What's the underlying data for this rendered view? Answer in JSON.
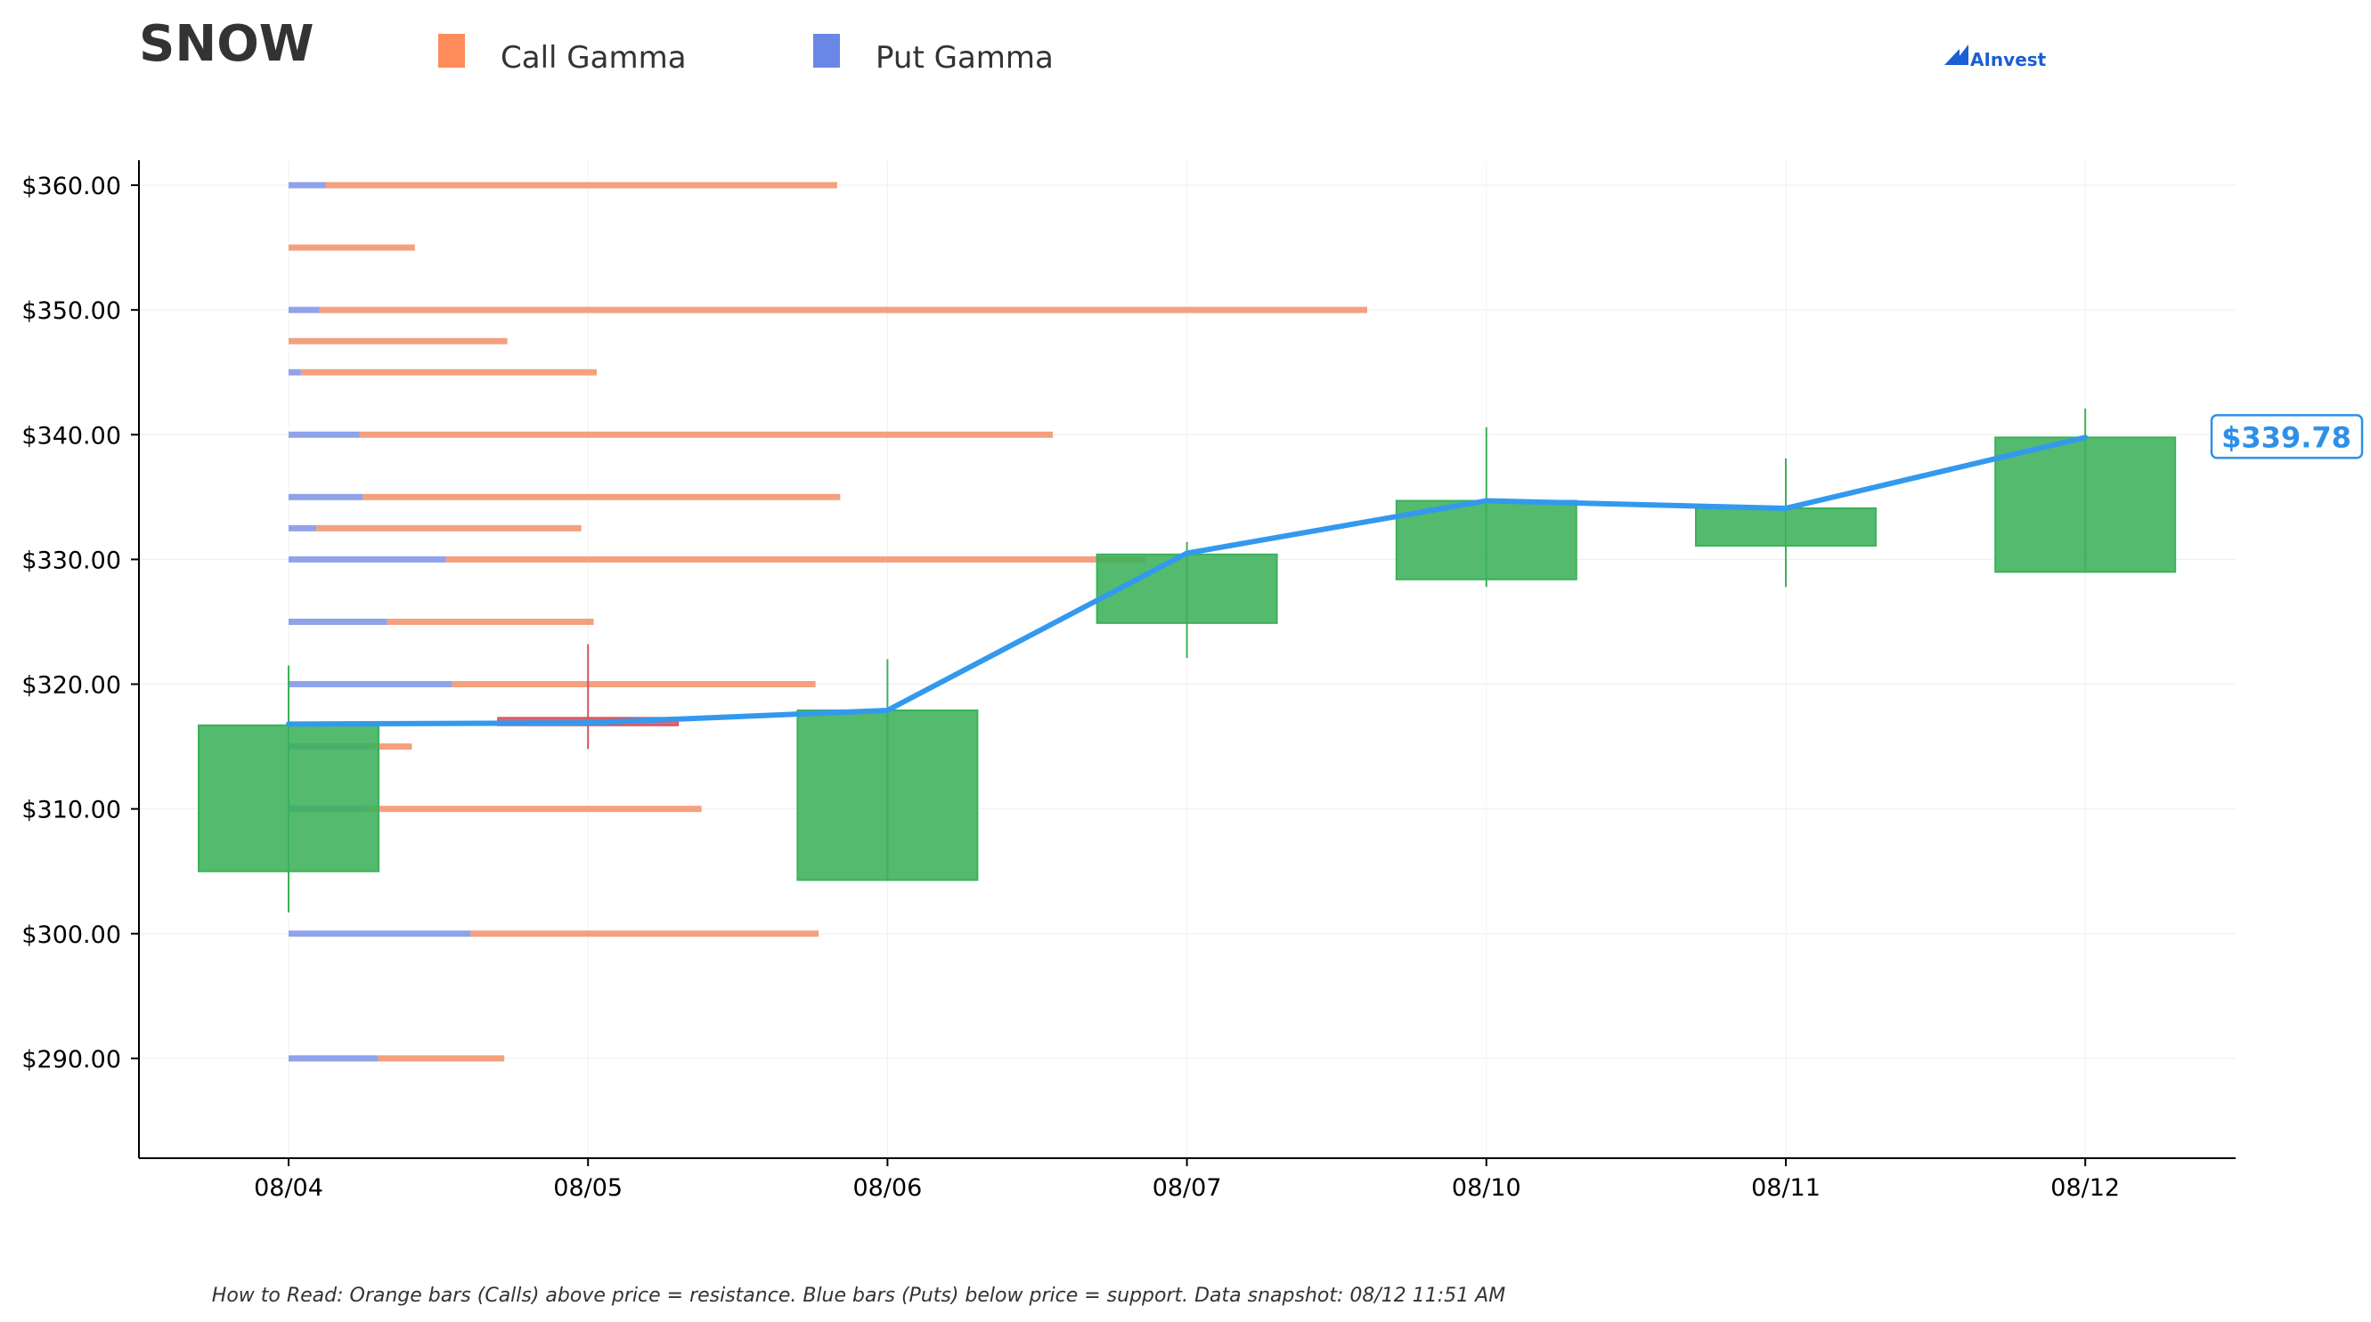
{
  "header": {
    "ticker": "SNOW",
    "brand": "AInvest"
  },
  "legend": {
    "call_label": "Call Gamma",
    "put_label": "Put Gamma"
  },
  "colors": {
    "call": "#f4a07f",
    "call_legend": "#ff8c5a",
    "put": "#8fa3ea",
    "put_legend": "#6b87e6",
    "up_candle": "#3cb15a",
    "down_candle": "#d9535f",
    "price_line": "#3399ee",
    "brand": "#1a5fd6"
  },
  "footnote": "How to Read: Orange bars (Calls) above price = resistance. Blue bars (Puts) below price = support. Data snapshot: 08/12 11:51 AM",
  "chart_data": {
    "type": "candlestick",
    "x_labels": [
      "08/04",
      "08/05",
      "08/06",
      "08/07",
      "08/10",
      "08/11",
      "08/12"
    ],
    "ylim": [
      282,
      362
    ],
    "y_ticks": [
      290,
      300,
      310,
      320,
      330,
      340,
      350,
      360
    ],
    "y_tick_labels": [
      "$290.00",
      "$300.00",
      "$310.00",
      "$320.00",
      "$330.00",
      "$340.00",
      "$350.00",
      "$360.00"
    ],
    "grid": true,
    "candles": [
      {
        "date": "08/04",
        "open": 305.0,
        "high": 321.5,
        "low": 301.7,
        "close": 316.7
      },
      {
        "date": "08/05",
        "open": 317.3,
        "high": 323.2,
        "low": 314.8,
        "close": 316.7
      },
      {
        "date": "08/06",
        "open": 304.3,
        "high": 322.0,
        "low": 304.3,
        "close": 317.9
      },
      {
        "date": "08/07",
        "open": 324.9,
        "high": 331.4,
        "low": 322.1,
        "close": 330.4
      },
      {
        "date": "08/10",
        "open": 328.4,
        "high": 340.6,
        "low": 327.8,
        "close": 334.7
      },
      {
        "date": "08/11",
        "open": 331.1,
        "high": 338.1,
        "low": 327.8,
        "close": 334.1
      },
      {
        "date": "08/12",
        "open": 329.0,
        "high": 342.1,
        "low": 329.0,
        "close": 339.78
      }
    ],
    "price_line": [
      316.8,
      316.9,
      317.9,
      330.5,
      334.7,
      334.1,
      339.78
    ],
    "last_price_label": "$339.78",
    "gamma_bars": [
      {
        "strike": 360,
        "put": 0.12,
        "call": 1.66
      },
      {
        "strike": 355,
        "put": 0.0,
        "call": 0.41
      },
      {
        "strike": 350,
        "put": 0.1,
        "call": 3.4
      },
      {
        "strike": 347.5,
        "put": 0.0,
        "call": 0.71
      },
      {
        "strike": 345,
        "put": 0.04,
        "call": 0.96
      },
      {
        "strike": 340,
        "put": 0.23,
        "call": 2.25
      },
      {
        "strike": 335,
        "put": 0.24,
        "call": 1.55
      },
      {
        "strike": 332.5,
        "put": 0.09,
        "call": 0.86
      },
      {
        "strike": 330,
        "put": 0.51,
        "call": 2.27
      },
      {
        "strike": 325,
        "put": 0.32,
        "call": 0.67
      },
      {
        "strike": 320,
        "put": 0.53,
        "call": 1.18
      },
      {
        "strike": 315,
        "put": 0.26,
        "call": 0.14
      },
      {
        "strike": 310,
        "put": 0.25,
        "call": 1.09
      },
      {
        "strike": 300,
        "put": 0.59,
        "call": 1.13
      },
      {
        "strike": 290,
        "put": 0.29,
        "call": 0.41
      }
    ]
  }
}
